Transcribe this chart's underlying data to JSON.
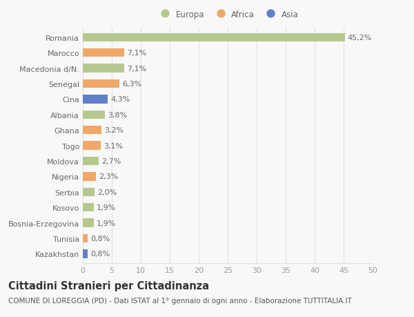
{
  "countries": [
    "Romania",
    "Marocco",
    "Macedonia d/N.",
    "Senegal",
    "Cina",
    "Albania",
    "Ghana",
    "Togo",
    "Moldova",
    "Nigeria",
    "Serbia",
    "Kosovo",
    "Bosnia-Erzegovina",
    "Tunisia",
    "Kazakhstan"
  ],
  "values": [
    45.2,
    7.1,
    7.1,
    6.3,
    4.3,
    3.8,
    3.2,
    3.1,
    2.7,
    2.3,
    2.0,
    1.9,
    1.9,
    0.8,
    0.8
  ],
  "labels": [
    "45,2%",
    "7,1%",
    "7,1%",
    "6,3%",
    "4,3%",
    "3,8%",
    "3,2%",
    "3,1%",
    "2,7%",
    "2,3%",
    "2,0%",
    "1,9%",
    "1,9%",
    "0,8%",
    "0,8%"
  ],
  "continents": [
    "Europa",
    "Africa",
    "Europa",
    "Africa",
    "Asia",
    "Europa",
    "Africa",
    "Africa",
    "Europa",
    "Africa",
    "Europa",
    "Europa",
    "Europa",
    "Africa",
    "Asia"
  ],
  "colors": {
    "Europa": "#b5c98e",
    "Africa": "#f0a868",
    "Asia": "#6080c8"
  },
  "title": "Cittadini Stranieri per Cittadinanza",
  "subtitle": "COMUNE DI LOREGGIA (PD) - Dati ISTAT al 1° gennaio di ogni anno - Elaborazione TUTTITALIA.IT",
  "xlim": [
    0,
    50
  ],
  "xticks": [
    0,
    5,
    10,
    15,
    20,
    25,
    30,
    35,
    40,
    45,
    50
  ],
  "background_color": "#f8f8f8",
  "grid_color": "#e0e0e0",
  "bar_height": 0.55,
  "label_fontsize": 8,
  "tick_fontsize": 8,
  "title_fontsize": 10.5,
  "subtitle_fontsize": 7.5
}
